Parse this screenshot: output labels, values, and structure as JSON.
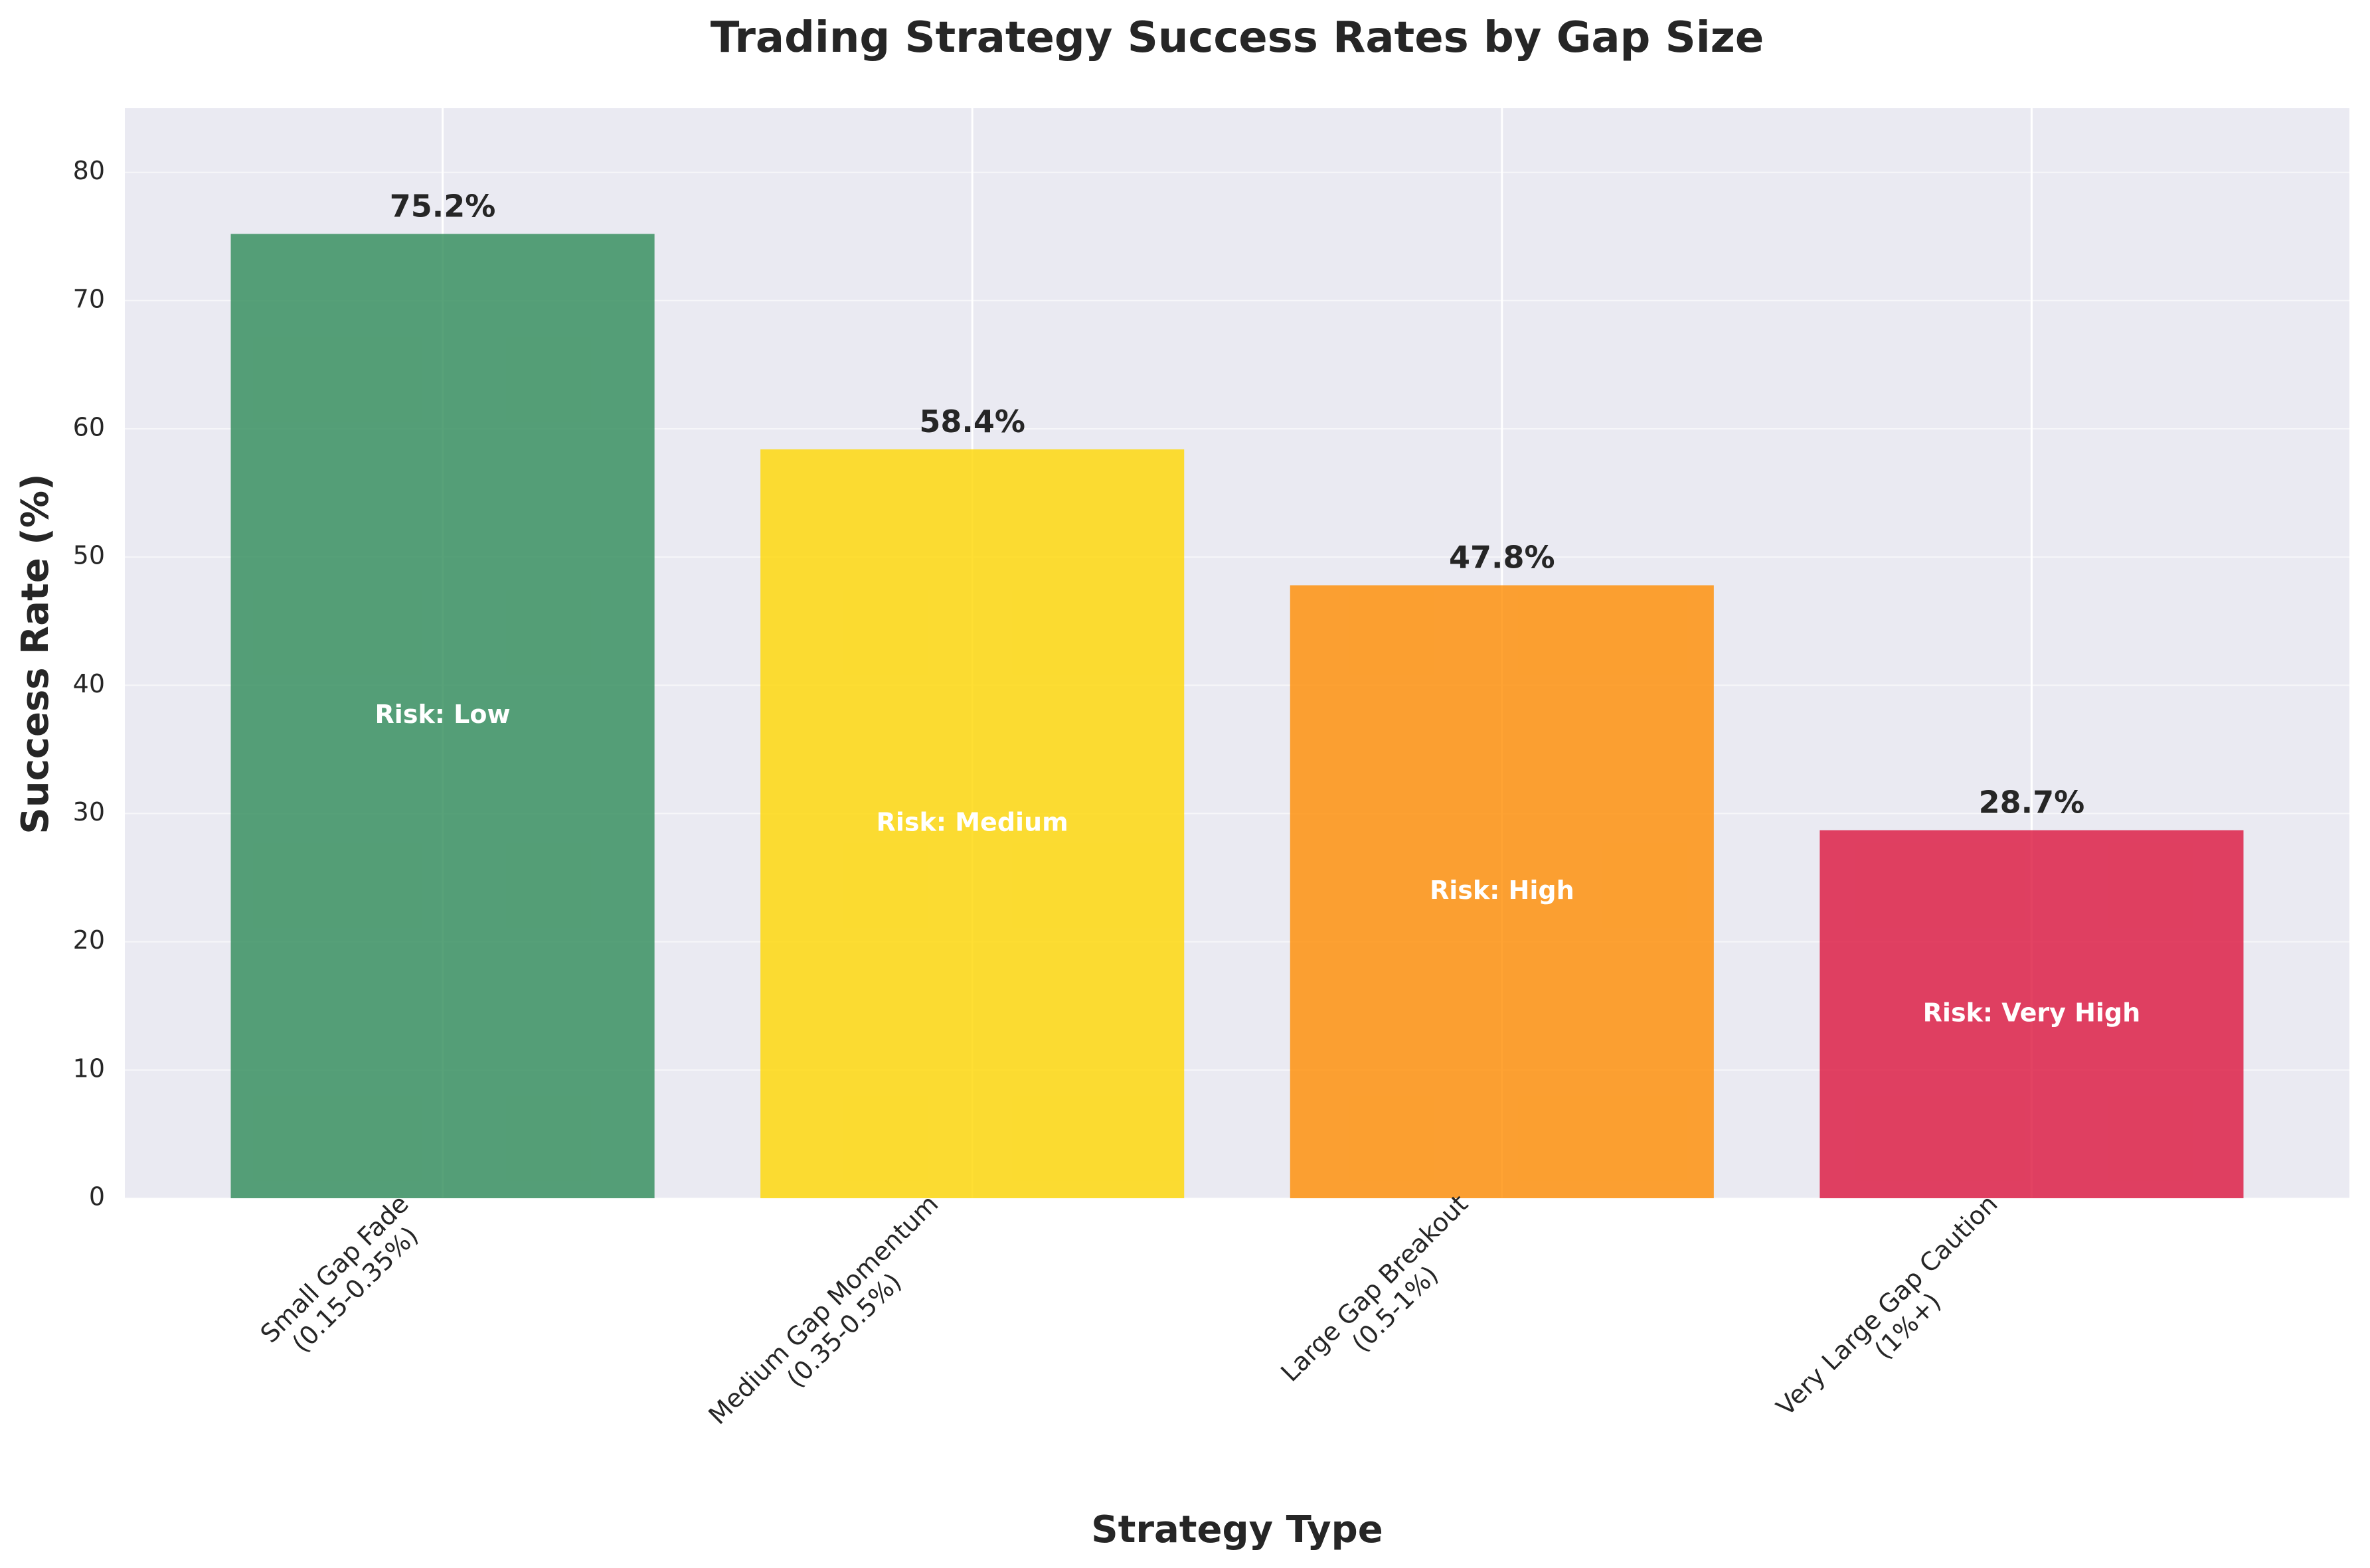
{
  "chart_data": {
    "type": "bar",
    "title": "Trading Strategy Success Rates by Gap Size",
    "xlabel": "Strategy Type",
    "ylabel": "Success Rate (%)",
    "ylim": [
      0,
      85
    ],
    "yticks": [
      0,
      10,
      20,
      30,
      40,
      50,
      60,
      70,
      80
    ],
    "grid": true,
    "categories": [
      [
        "Small Gap Fade",
        "(0.15-0.35%)"
      ],
      [
        "Medium Gap Momentum",
        "(0.35-0.5%)"
      ],
      [
        "Large Gap Breakout",
        "(0.5-1%)"
      ],
      [
        "Very Large Gap Caution",
        "(1%+)"
      ]
    ],
    "values": [
      75.2,
      58.4,
      47.8,
      28.7
    ],
    "value_labels": [
      "75.2%",
      "58.4%",
      "47.8%",
      "28.7%"
    ],
    "risk_labels": [
      "Risk: Low",
      "Risk: Medium",
      "Risk: High",
      "Risk: Very High"
    ],
    "colors": [
      "#2e8b57",
      "#ffd700",
      "#ff8c00",
      "#dc143c"
    ],
    "background": "#eaeaf2"
  }
}
